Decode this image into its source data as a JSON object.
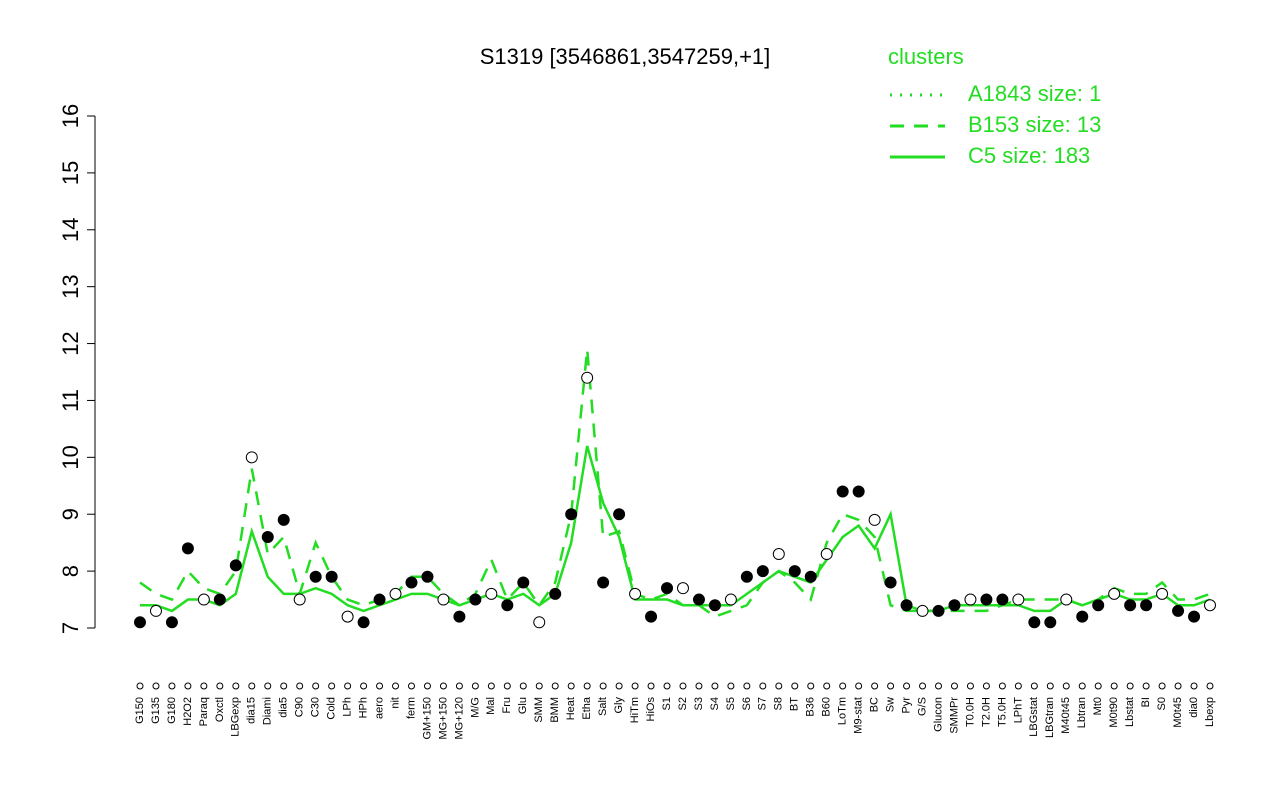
{
  "chart_data": {
    "type": "cluster-profile",
    "title": "S1319 [3546861,3547259,+1]",
    "legend_title": "clusters",
    "ylim": [
      7,
      16
    ],
    "yticks": [
      7,
      8,
      9,
      10,
      11,
      12,
      13,
      14,
      15,
      16
    ],
    "point_color": "#000000",
    "categories": [
      "G150",
      "G135",
      "G180",
      "H2O2",
      "Paraq",
      "Oxctl",
      "LBGexp",
      "dia15",
      "Diami",
      "dia5",
      "C90",
      "C30",
      "Cold",
      "LPh",
      "HPh",
      "aero",
      "nit",
      "ferm",
      "GM+150",
      "MG+150",
      "MG+120",
      "M/G",
      "Mal",
      "Fru",
      "Glu",
      "SMM",
      "BMM",
      "Heat",
      "Etha",
      "Salt",
      "Gly",
      "HiTm",
      "HiOs",
      "S1",
      "S2",
      "S3",
      "S4",
      "S5",
      "S6",
      "S7",
      "S8",
      "BT",
      "B36",
      "B60",
      "LoTm",
      "M9-stat",
      "BC",
      "Sw",
      "Pyr",
      "G/S",
      "Glucon",
      "SMMPr",
      "T0.0H",
      "T2.0H",
      "T5.0H",
      "LPhT",
      "LBGstat",
      "LBGtran",
      "M40t45",
      "Lbtran",
      "Mt0",
      "M0t90",
      "Lbstat",
      "BI",
      "S0",
      "M0t45",
      "dia0",
      "Lbexp"
    ],
    "values": [
      7.1,
      7.3,
      7.1,
      8.4,
      7.5,
      7.5,
      8.1,
      10.0,
      8.6,
      8.9,
      7.5,
      7.9,
      7.9,
      7.2,
      7.1,
      7.5,
      7.6,
      7.8,
      7.9,
      7.5,
      7.2,
      7.5,
      7.6,
      7.4,
      7.8,
      7.1,
      7.6,
      9.0,
      11.4,
      7.8,
      9.0,
      7.6,
      7.2,
      7.7,
      7.7,
      7.5,
      7.4,
      7.5,
      7.9,
      8.0,
      8.3,
      8.0,
      7.9,
      8.3,
      9.4,
      9.4,
      8.9,
      7.8,
      7.4,
      7.3,
      7.3,
      7.4,
      7.5,
      7.5,
      7.5,
      7.5,
      7.1,
      7.1,
      7.5,
      7.2,
      7.4,
      7.6,
      7.4,
      7.4,
      7.6,
      7.3,
      7.2,
      7.4
    ],
    "series": [
      {
        "name": "A1843 size: 1",
        "color": "#22dd22",
        "dash": "dotted",
        "values": [
          null,
          null,
          null,
          null,
          null,
          null,
          null,
          null,
          null,
          null,
          null,
          null,
          null,
          null,
          null,
          null,
          null,
          null,
          null,
          null,
          null,
          null,
          null,
          null,
          null,
          null,
          null,
          null,
          null,
          null,
          null,
          null,
          null,
          null,
          null,
          null,
          null,
          null,
          null,
          null,
          null,
          null,
          null,
          null,
          null,
          null,
          null,
          null,
          null,
          null,
          null,
          null,
          null,
          null,
          null,
          null,
          null,
          null,
          null,
          null,
          null,
          null,
          null,
          null,
          null,
          null,
          null,
          null
        ]
      },
      {
        "name": "B153 size: 13",
        "color": "#22dd22",
        "dash": "dashed",
        "values": [
          7.8,
          7.6,
          7.5,
          8.0,
          7.7,
          7.6,
          8.0,
          9.8,
          8.3,
          8.6,
          7.6,
          8.5,
          7.9,
          7.5,
          7.4,
          7.5,
          7.6,
          7.9,
          7.9,
          7.6,
          7.4,
          7.6,
          8.2,
          7.5,
          7.8,
          7.4,
          7.8,
          9.0,
          11.9,
          8.6,
          8.7,
          7.6,
          7.5,
          7.6,
          7.4,
          7.4,
          7.2,
          7.3,
          7.4,
          7.8,
          8.0,
          7.8,
          7.5,
          8.5,
          9.0,
          8.9,
          8.6,
          7.4,
          7.3,
          7.3,
          7.3,
          7.3,
          7.3,
          7.3,
          7.4,
          7.5,
          7.5,
          7.5,
          7.5,
          7.4,
          7.5,
          7.7,
          7.6,
          7.6,
          7.8,
          7.5,
          7.5,
          7.6
        ]
      },
      {
        "name": "C5 size: 183",
        "color": "#22dd22",
        "dash": "solid",
        "values": [
          7.4,
          7.4,
          7.3,
          7.5,
          7.5,
          7.4,
          7.6,
          8.7,
          7.9,
          7.6,
          7.6,
          7.7,
          7.6,
          7.4,
          7.3,
          7.4,
          7.5,
          7.6,
          7.6,
          7.5,
          7.4,
          7.5,
          7.6,
          7.5,
          7.6,
          7.4,
          7.6,
          8.5,
          10.2,
          9.2,
          8.6,
          7.5,
          7.5,
          7.5,
          7.4,
          7.4,
          7.4,
          7.4,
          7.6,
          7.8,
          8.0,
          7.9,
          7.8,
          8.2,
          8.6,
          8.8,
          8.4,
          9.0,
          7.4,
          7.3,
          7.3,
          7.4,
          7.4,
          7.4,
          7.4,
          7.4,
          7.3,
          7.3,
          7.5,
          7.4,
          7.5,
          7.6,
          7.5,
          7.5,
          7.6,
          7.4,
          7.4,
          7.5
        ]
      }
    ]
  }
}
